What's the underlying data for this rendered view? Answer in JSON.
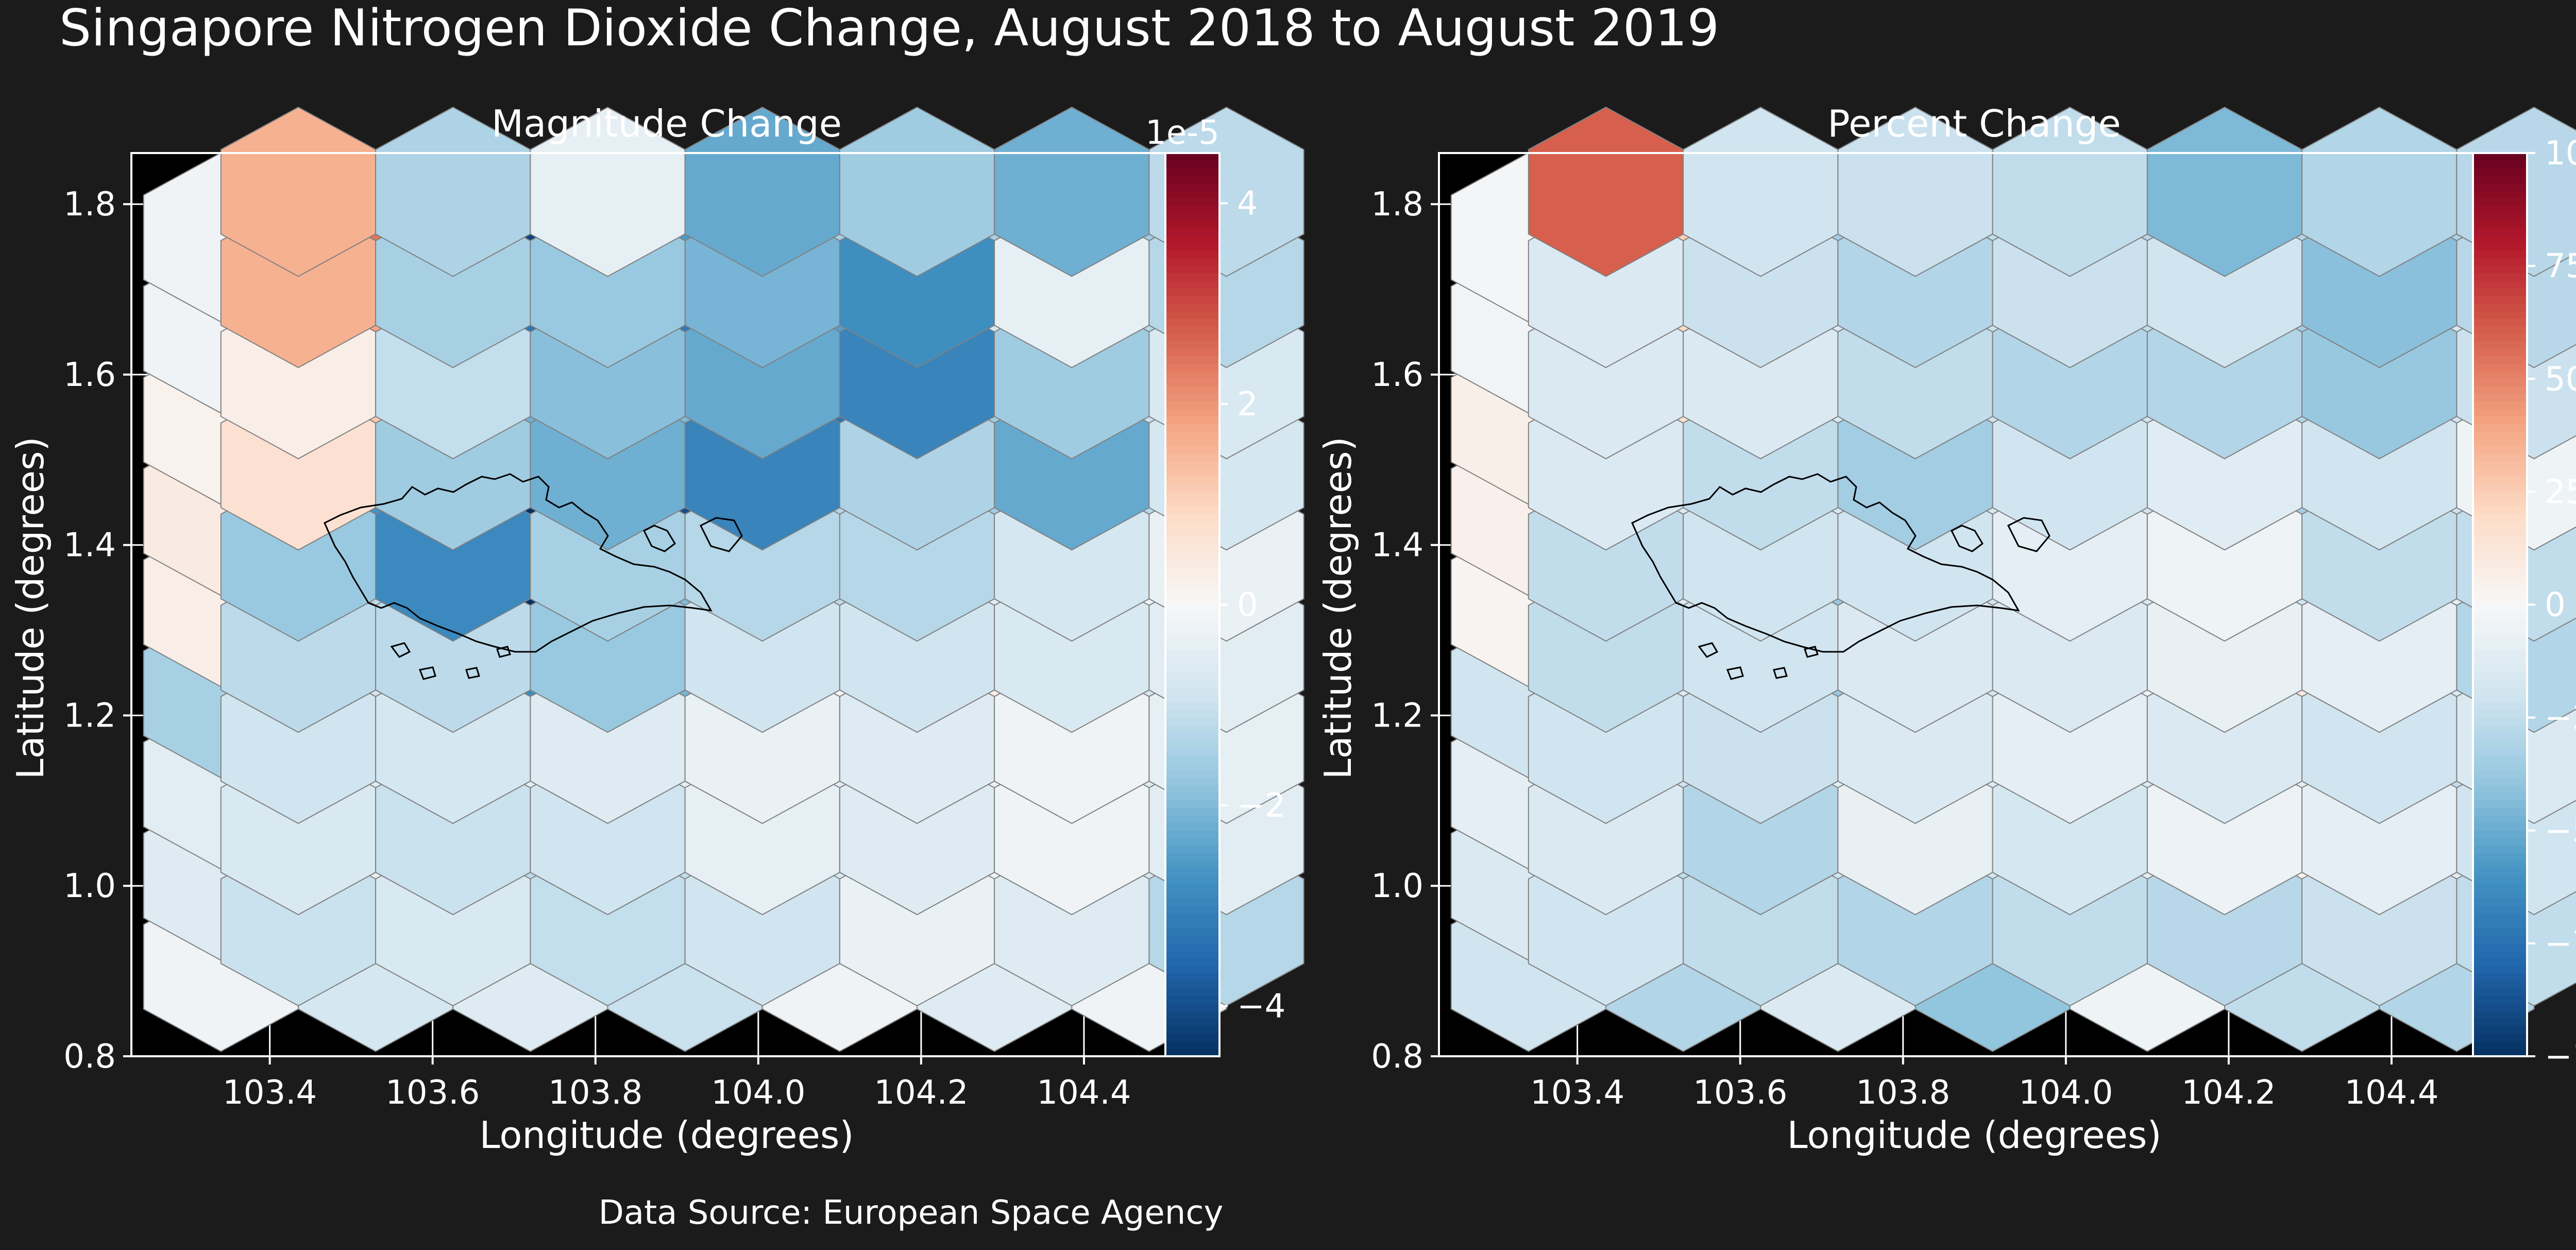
{
  "figure": {
    "suptitle": "Singapore Nitrogen Dioxide Change, August 2018 to August 2019",
    "footer": "Data Source: European Space Agency"
  },
  "colors": {
    "background": "#1b1b1b",
    "axes_face": "#000000",
    "axes_edge": "#ffffff",
    "grid": "#ffffff",
    "hex_edge": "#808080",
    "coastline": "#000000",
    "text": "#ffffff",
    "colormap": "RdBu_r"
  },
  "chart_data": [
    {
      "type": "heatmap",
      "subtype": "hexbin",
      "title": "Magnitude Change",
      "xlabel": "Longitude (degrees)",
      "ylabel": "Latitude (degrees)",
      "xlim": [
        103.23,
        104.5
      ],
      "ylim": [
        0.8,
        1.86
      ],
      "xticks": [
        103.4,
        103.6,
        103.8,
        104.0,
        104.2,
        104.4
      ],
      "xticklabels": [
        "103.4",
        "103.6",
        "103.8",
        "104.0",
        "104.2",
        "104.4"
      ],
      "yticks": [
        0.8,
        1.0,
        1.2,
        1.4,
        1.6,
        1.8
      ],
      "yticklabels": [
        "0.8",
        "1.0",
        "1.2",
        "1.4",
        "1.6",
        "1.8"
      ],
      "grid": true,
      "colorbar": {
        "range": [
          -4.5,
          4.5
        ],
        "ticks": [
          -4,
          -2,
          0,
          2,
          4
        ],
        "ticklabels": [
          "−4",
          "−2",
          "0",
          "2",
          "4"
        ],
        "offset_text": "1e-5",
        "scale": 1e-05
      },
      "hexgrid": {
        "x0": 103.34,
        "dx": 0.19,
        "y0": 0.905,
        "dy": 0.107,
        "cols": 7,
        "row_values": [
          [
            -0.2,
            -0.8,
            -0.6,
            -1.0,
            -0.2,
            -0.6,
            -0.2
          ],
          [
            -0.6,
            -0.4,
            -1.2,
            -1.1,
            -0.8,
            -0.2,
            -0.8
          ],
          [
            -0.5,
            -0.6,
            -0.4,
            -0.4,
            -0.5,
            -0.3,
            -0.6
          ],
          [
            -1.5,
            -0.9,
            -2.8,
            -2.1,
            0.0,
            0.3,
            -0.8
          ],
          [
            0.3,
            -1.2,
            -4.5,
            -2.0,
            -1.2,
            -0.6,
            -0.2
          ],
          [
            0.4,
            -2.7,
            -4.6,
            -4.0,
            -1.3,
            -1.6,
            -1.2
          ],
          [
            0.2,
            1.2,
            -2.2,
            -2.0,
            -3.3,
            -1.6,
            -1.0
          ],
          [
            -0.2,
            1.8,
            -3.3,
            -3.2,
            -2.5,
            -0.8,
            -1.3
          ],
          [
            -0.2,
            2.4,
            -4.2,
            -2.6,
            -1.5,
            -1.5,
            -1.6
          ]
        ],
        "row_values_offset": [
          [
            -1.0,
            -0.7,
            -1.1,
            -0.9,
            -0.3,
            -0.6,
            -1.3
          ],
          [
            -0.7,
            -1.0,
            -0.9,
            -0.4,
            -0.6,
            -0.2,
            -0.5
          ],
          [
            -0.9,
            -0.8,
            -0.6,
            -0.3,
            -0.6,
            -0.2,
            -0.4
          ],
          [
            -1.2,
            -1.2,
            -1.7,
            -0.9,
            -0.9,
            -0.7,
            -0.5
          ],
          [
            -1.7,
            -2.9,
            -1.5,
            -1.3,
            -1.3,
            -0.8,
            -0.3
          ],
          [
            0.7,
            -1.6,
            -2.2,
            -3.0,
            -1.4,
            -2.3,
            -0.8
          ],
          [
            0.3,
            -1.1,
            -1.9,
            -2.3,
            -3.0,
            -1.6,
            -0.7
          ],
          [
            1.6,
            -1.5,
            -1.7,
            -2.1,
            -2.8,
            -0.4,
            -1.3
          ],
          [
            1.6,
            -1.4,
            -0.4,
            -2.3,
            -1.6,
            -2.2,
            -1.2
          ]
        ]
      }
    },
    {
      "type": "heatmap",
      "subtype": "hexbin",
      "title": "Percent Change",
      "xlabel": "Longitude (degrees)",
      "ylabel": "Latitude (degrees)",
      "xlim": [
        103.23,
        104.5
      ],
      "ylim": [
        0.8,
        1.86
      ],
      "xticks": [
        103.4,
        103.6,
        103.8,
        104.0,
        104.2,
        104.4
      ],
      "xticklabels": [
        "103.4",
        "103.6",
        "103.8",
        "104.0",
        "104.2",
        "104.4"
      ],
      "yticks": [
        0.8,
        1.0,
        1.2,
        1.4,
        1.6,
        1.8
      ],
      "yticklabels": [
        "0.8",
        "1.0",
        "1.2",
        "1.4",
        "1.6",
        "1.8"
      ],
      "grid": true,
      "colorbar": {
        "range": [
          -100,
          100
        ],
        "ticks": [
          -100,
          -75,
          -50,
          -25,
          0,
          25,
          50,
          75,
          100
        ],
        "ticklabels": [
          "−100",
          "−75",
          "−50",
          "−25",
          "0",
          "25",
          "50",
          "75",
          "100"
        ],
        "offset_text": "",
        "scale": 1
      },
      "hexgrid": {
        "x0": 103.34,
        "dx": 0.19,
        "y0": 0.905,
        "dy": 0.107,
        "cols": 7,
        "row_values": [
          [
            -20,
            -30,
            -15,
            -40,
            -5,
            -25,
            -30
          ],
          [
            -15,
            -25,
            -20,
            -20,
            -10,
            4,
            -12
          ],
          [
            -10,
            -20,
            -12,
            -15,
            -15,
            -10,
            -25
          ],
          [
            -20,
            -15,
            -38,
            -20,
            -5,
            10,
            -15
          ],
          [
            3,
            -15,
            -38,
            -20,
            -15,
            -20,
            -10
          ],
          [
            5,
            -15,
            -18,
            -18,
            -20,
            -35,
            -22
          ],
          [
            6,
            15,
            -15,
            -22,
            -20,
            -30,
            -20
          ],
          [
            -3,
            20,
            -15,
            -22,
            -25,
            -35,
            -18
          ],
          [
            -2,
            25,
            -35,
            -25,
            -30,
            -30,
            -32
          ]
        ],
        "row_values_offset": [
          [
            -20,
            -25,
            -30,
            -25,
            -28,
            -22,
            -25
          ],
          [
            -15,
            -30,
            -8,
            -18,
            -6,
            -10,
            -20
          ],
          [
            -20,
            -22,
            -15,
            -10,
            -15,
            -20,
            -15
          ],
          [
            -25,
            -20,
            -15,
            -15,
            -8,
            -10,
            -30
          ],
          [
            -25,
            -20,
            -20,
            -10,
            -5,
            -25,
            -25
          ],
          [
            -15,
            -25,
            -35,
            -20,
            -12,
            -20,
            -5
          ],
          [
            -15,
            -15,
            -25,
            -30,
            -30,
            -38,
            -22
          ],
          [
            -15,
            -22,
            -30,
            -22,
            -20,
            -42,
            -28
          ],
          [
            60,
            -20,
            -22,
            -25,
            -45,
            -30,
            -28
          ]
        ]
      }
    }
  ]
}
